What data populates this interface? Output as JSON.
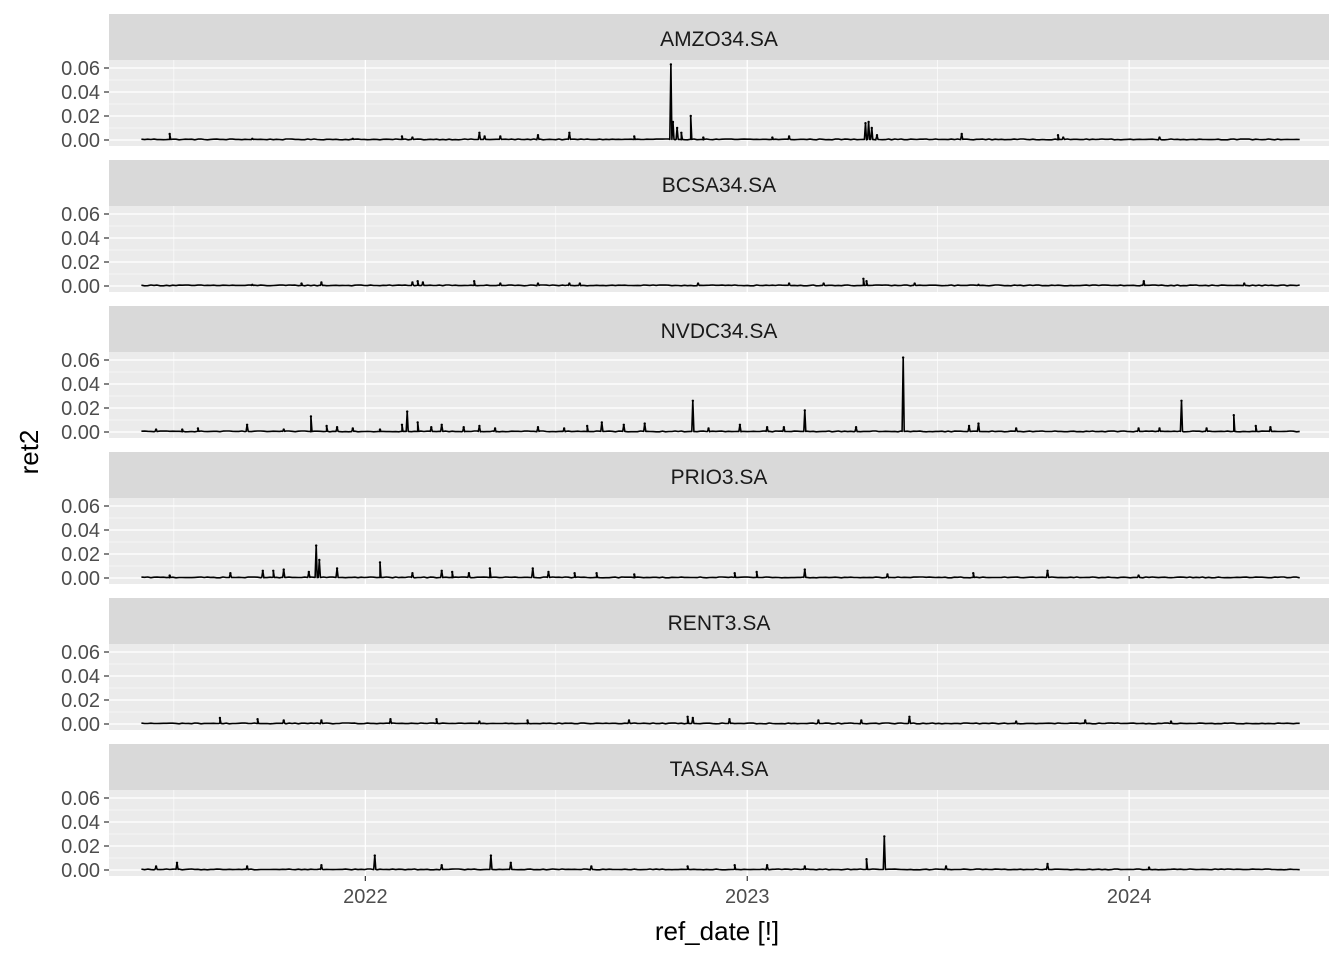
{
  "chart_data": {
    "type": "line",
    "xlabel": "ref_date [!]",
    "ylabel": "ret2",
    "ylim": [
      0,
      0.06
    ],
    "xlim": [
      "2021-05-01",
      "2024-07-10"
    ],
    "x_ticks": [
      "2022",
      "2023",
      "2024"
    ],
    "x_tick_dates": [
      "2022-01-01",
      "2023-01-01",
      "2024-01-01"
    ],
    "y_ticks": [
      "0.00",
      "0.02",
      "0.04",
      "0.06"
    ],
    "y_tick_values": [
      0,
      0.02,
      0.04,
      0.06
    ],
    "date_range": [
      "2021-06-01",
      "2024-06-14"
    ],
    "baseline": 0.0005,
    "facet_layout": "stacked, shared x and y scales",
    "grid": true,
    "colors": {
      "panel": "#ebebeb",
      "strip": "#d9d9d9",
      "grid": "#ffffff",
      "line": "#000000",
      "tick": "#333333"
    },
    "series": [
      {
        "name": "AMZO34.SA",
        "points": [
          [
            "2021-06-28",
            0.005
          ],
          [
            "2021-09-15",
            0.001
          ],
          [
            "2021-12-20",
            0.001
          ],
          [
            "2022-02-05",
            0.003
          ],
          [
            "2022-02-15",
            0.002
          ],
          [
            "2022-04-20",
            0.006
          ],
          [
            "2022-04-25",
            0.003
          ],
          [
            "2022-05-10",
            0.003
          ],
          [
            "2022-06-15",
            0.004
          ],
          [
            "2022-07-15",
            0.006
          ],
          [
            "2022-09-15",
            0.003
          ],
          [
            "2022-10-20",
            0.063
          ],
          [
            "2022-10-22",
            0.015
          ],
          [
            "2022-10-26",
            0.01
          ],
          [
            "2022-10-30",
            0.006
          ],
          [
            "2022-11-08",
            0.02
          ],
          [
            "2022-11-20",
            0.002
          ],
          [
            "2023-01-25",
            0.002
          ],
          [
            "2023-02-10",
            0.003
          ],
          [
            "2023-04-24",
            0.014
          ],
          [
            "2023-04-27",
            0.015
          ],
          [
            "2023-04-30",
            0.01
          ],
          [
            "2023-05-05",
            0.004
          ],
          [
            "2023-07-25",
            0.005
          ],
          [
            "2023-10-25",
            0.004
          ],
          [
            "2023-10-30",
            0.002
          ],
          [
            "2024-01-30",
            0.002
          ]
        ]
      },
      {
        "name": "BCSA34.SA",
        "points": [
          [
            "2021-09-15",
            0.001
          ],
          [
            "2021-11-01",
            0.002
          ],
          [
            "2021-11-20",
            0.003
          ],
          [
            "2022-02-15",
            0.003
          ],
          [
            "2022-02-20",
            0.004
          ],
          [
            "2022-02-25",
            0.003
          ],
          [
            "2022-04-15",
            0.004
          ],
          [
            "2022-05-10",
            0.002
          ],
          [
            "2022-06-15",
            0.002
          ],
          [
            "2022-07-15",
            0.002
          ],
          [
            "2022-07-25",
            0.002
          ],
          [
            "2022-11-15",
            0.002
          ],
          [
            "2023-02-10",
            0.002
          ],
          [
            "2023-03-15",
            0.002
          ],
          [
            "2023-04-22",
            0.006
          ],
          [
            "2023-04-25",
            0.004
          ],
          [
            "2023-06-10",
            0.002
          ],
          [
            "2023-08-10",
            0.001
          ],
          [
            "2024-01-15",
            0.004
          ],
          [
            "2024-04-20",
            0.002
          ]
        ]
      },
      {
        "name": "NVDC34.SA",
        "points": [
          [
            "2021-06-15",
            0.002
          ],
          [
            "2021-07-10",
            0.002
          ],
          [
            "2021-07-25",
            0.003
          ],
          [
            "2021-09-10",
            0.006
          ],
          [
            "2021-10-15",
            0.002
          ],
          [
            "2021-11-10",
            0.013
          ],
          [
            "2021-11-25",
            0.005
          ],
          [
            "2021-12-05",
            0.004
          ],
          [
            "2021-12-20",
            0.003
          ],
          [
            "2022-01-15",
            0.002
          ],
          [
            "2022-02-05",
            0.006
          ],
          [
            "2022-02-10",
            0.017
          ],
          [
            "2022-02-20",
            0.008
          ],
          [
            "2022-03-05",
            0.004
          ],
          [
            "2022-03-15",
            0.006
          ],
          [
            "2022-04-05",
            0.004
          ],
          [
            "2022-04-20",
            0.005
          ],
          [
            "2022-05-05",
            0.003
          ],
          [
            "2022-06-15",
            0.004
          ],
          [
            "2022-07-10",
            0.003
          ],
          [
            "2022-08-01",
            0.005
          ],
          [
            "2022-08-15",
            0.008
          ],
          [
            "2022-09-05",
            0.006
          ],
          [
            "2022-09-25",
            0.007
          ],
          [
            "2022-11-10",
            0.026
          ],
          [
            "2022-11-25",
            0.003
          ],
          [
            "2022-12-25",
            0.006
          ],
          [
            "2023-01-20",
            0.004
          ],
          [
            "2023-02-05",
            0.004
          ],
          [
            "2023-02-25",
            0.018
          ],
          [
            "2023-04-15",
            0.004
          ],
          [
            "2023-05-30",
            0.062
          ],
          [
            "2023-08-01",
            0.005
          ],
          [
            "2023-08-10",
            0.007
          ],
          [
            "2023-09-15",
            0.003
          ],
          [
            "2024-01-10",
            0.003
          ],
          [
            "2024-01-30",
            0.003
          ],
          [
            "2024-02-20",
            0.026
          ],
          [
            "2024-03-15",
            0.003
          ],
          [
            "2024-04-10",
            0.014
          ],
          [
            "2024-05-01",
            0.005
          ],
          [
            "2024-05-15",
            0.004
          ]
        ]
      },
      {
        "name": "PRIO3.SA",
        "points": [
          [
            "2021-06-28",
            0.002
          ],
          [
            "2021-08-25",
            0.004
          ],
          [
            "2021-09-25",
            0.006
          ],
          [
            "2021-10-05",
            0.006
          ],
          [
            "2021-10-15",
            0.007
          ],
          [
            "2021-11-08",
            0.005
          ],
          [
            "2021-11-15",
            0.027
          ],
          [
            "2021-11-18",
            0.015
          ],
          [
            "2021-12-05",
            0.008
          ],
          [
            "2022-01-15",
            0.013
          ],
          [
            "2022-02-15",
            0.004
          ],
          [
            "2022-03-15",
            0.006
          ],
          [
            "2022-03-25",
            0.005
          ],
          [
            "2022-04-10",
            0.004
          ],
          [
            "2022-04-30",
            0.008
          ],
          [
            "2022-06-10",
            0.008
          ],
          [
            "2022-06-25",
            0.005
          ],
          [
            "2022-07-20",
            0.004
          ],
          [
            "2022-08-10",
            0.004
          ],
          [
            "2022-09-15",
            0.003
          ],
          [
            "2022-12-20",
            0.004
          ],
          [
            "2023-01-10",
            0.005
          ],
          [
            "2023-02-25",
            0.007
          ],
          [
            "2023-05-15",
            0.003
          ],
          [
            "2023-08-05",
            0.004
          ],
          [
            "2023-10-15",
            0.006
          ],
          [
            "2024-01-10",
            0.002
          ]
        ]
      },
      {
        "name": "RENT3.SA",
        "points": [
          [
            "2021-08-15",
            0.005
          ],
          [
            "2021-09-20",
            0.004
          ],
          [
            "2021-10-15",
            0.003
          ],
          [
            "2021-11-20",
            0.003
          ],
          [
            "2022-01-25",
            0.004
          ],
          [
            "2022-03-10",
            0.004
          ],
          [
            "2022-04-20",
            0.002
          ],
          [
            "2022-06-05",
            0.003
          ],
          [
            "2022-09-10",
            0.003
          ],
          [
            "2022-11-05",
            0.006
          ],
          [
            "2022-11-10",
            0.005
          ],
          [
            "2022-12-15",
            0.004
          ],
          [
            "2023-03-10",
            0.003
          ],
          [
            "2023-04-20",
            0.003
          ],
          [
            "2023-06-05",
            0.006
          ],
          [
            "2023-09-15",
            0.002
          ],
          [
            "2023-11-20",
            0.003
          ],
          [
            "2024-02-10",
            0.002
          ]
        ]
      },
      {
        "name": "TASA4.SA",
        "points": [
          [
            "2021-06-15",
            0.003
          ],
          [
            "2021-07-05",
            0.006
          ],
          [
            "2021-09-10",
            0.003
          ],
          [
            "2021-11-20",
            0.004
          ],
          [
            "2022-01-10",
            0.012
          ],
          [
            "2022-03-15",
            0.004
          ],
          [
            "2022-05-01",
            0.012
          ],
          [
            "2022-05-20",
            0.006
          ],
          [
            "2022-08-05",
            0.003
          ],
          [
            "2022-11-05",
            0.003
          ],
          [
            "2022-12-20",
            0.004
          ],
          [
            "2023-01-20",
            0.004
          ],
          [
            "2023-02-25",
            0.003
          ],
          [
            "2023-04-25",
            0.009
          ],
          [
            "2023-05-12",
            0.028
          ],
          [
            "2023-07-10",
            0.003
          ],
          [
            "2023-10-15",
            0.005
          ],
          [
            "2024-01-20",
            0.002
          ]
        ]
      }
    ]
  }
}
